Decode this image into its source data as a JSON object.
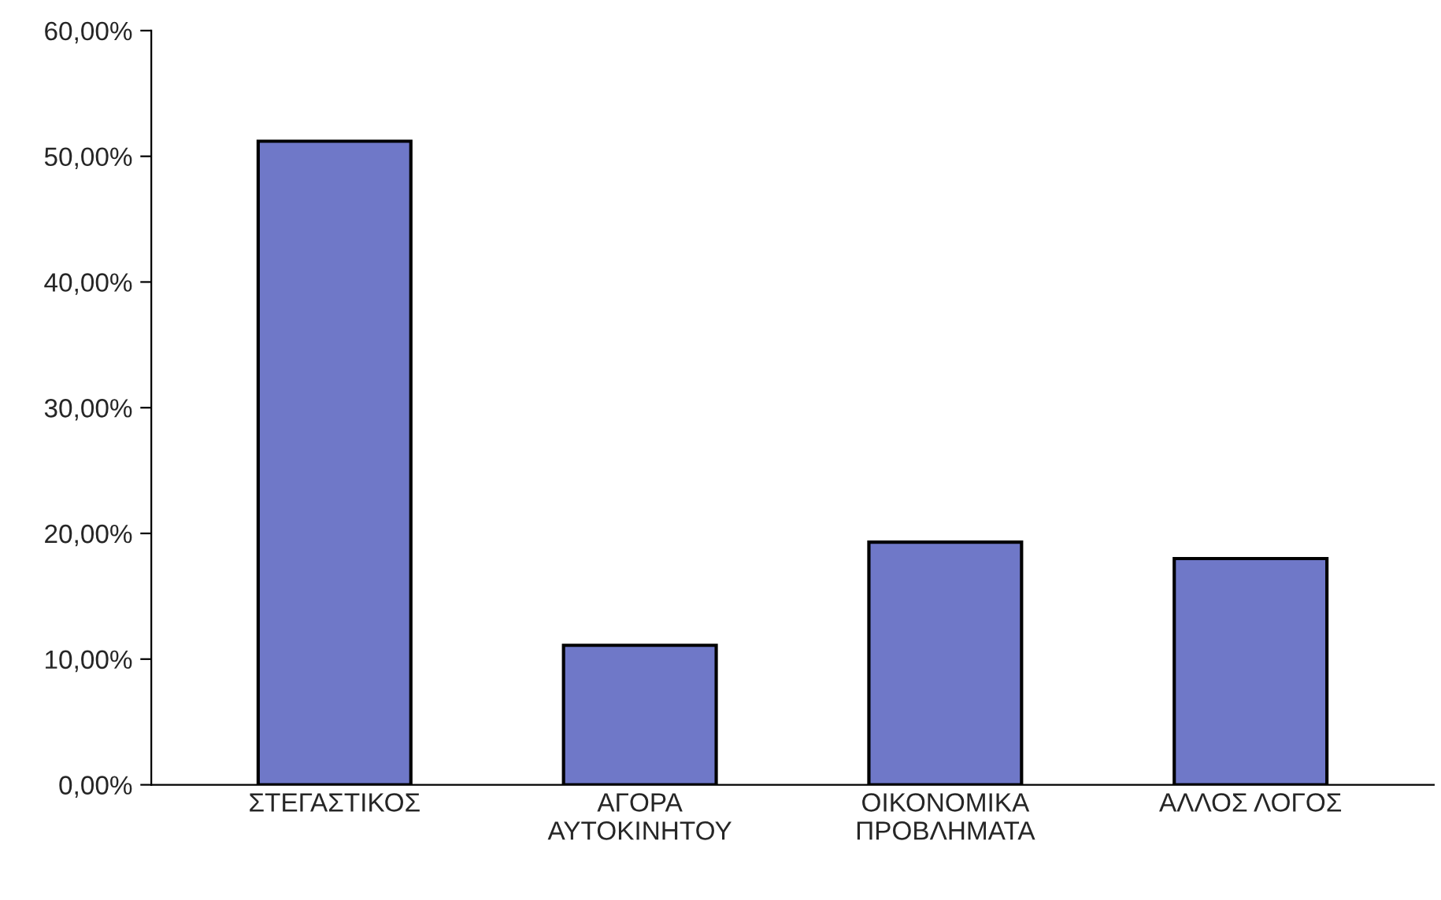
{
  "chart_data": {
    "type": "bar",
    "categories": [
      "ΣΤΕΓΑΣΤΙΚΟΣ",
      "ΑΓΟΡΑ\nΑΥΤΟΚΙΝΗΤΟΥ",
      "ΟΙΚΟΝΟΜΙΚΑ\nΠΡΟΒΛΗΜΑΤΑ",
      "ΑΛΛΟΣ ΛΟΓΟΣ"
    ],
    "series": [
      {
        "color": "#6f78c8",
        "values": [
          51.2,
          11.1,
          19.3,
          18.0
        ]
      }
    ],
    "ylim": [
      0,
      60
    ],
    "yticks": [
      {
        "value": 0,
        "label": "0,00%"
      },
      {
        "value": 10,
        "label": "10,00%"
      },
      {
        "value": 20,
        "label": "20,00%"
      },
      {
        "value": 30,
        "label": "30,00%"
      },
      {
        "value": 40,
        "label": "40,00%"
      },
      {
        "value": 50,
        "label": "50,00%"
      },
      {
        "value": 60,
        "label": "60,00%"
      }
    ],
    "grid": false,
    "legend": false
  }
}
